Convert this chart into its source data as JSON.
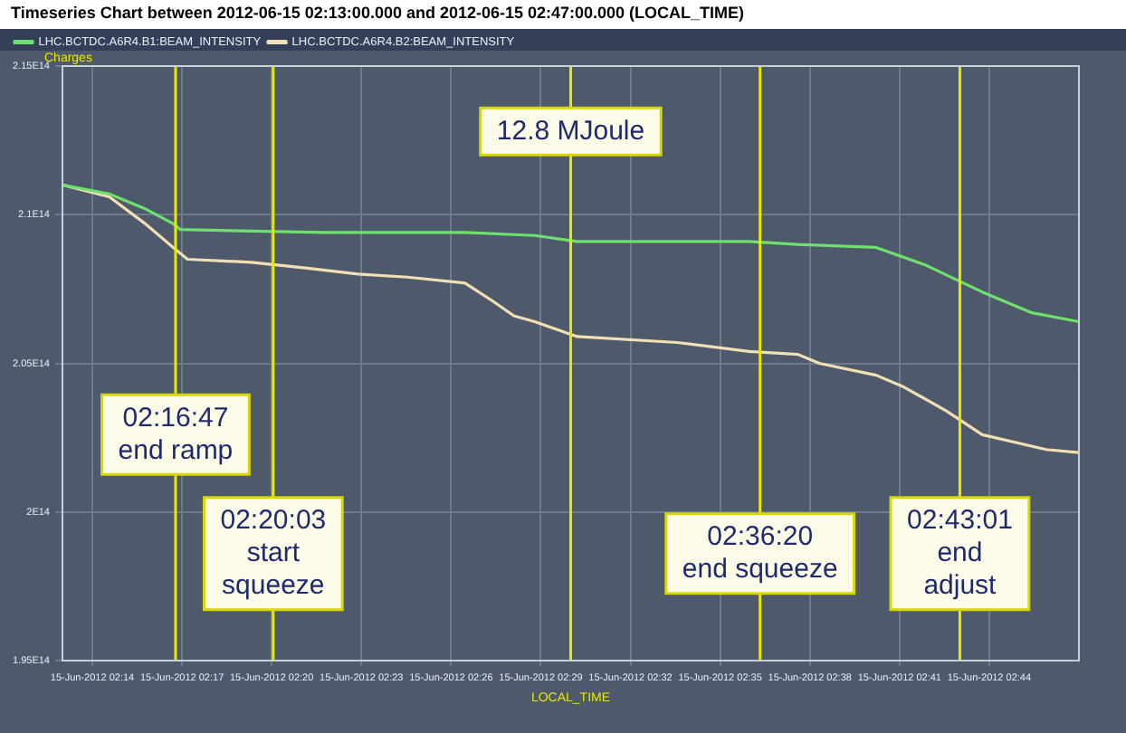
{
  "chart_data": {
    "type": "line",
    "title": "Timeseries Chart between 2012-06-15 02:13:00.000 and 2012-06-15 02:47:00.000 (LOCAL_TIME)",
    "xlabel": "LOCAL_TIME",
    "ylabel": "Charges",
    "series": [
      {
        "name": "LHC.BCTDC.A6R4.B1:BEAM_INTENSITY",
        "color": "#6ee06e",
        "x": [
          "2012-06-15T02:13:00",
          "2012-06-15T02:14:34",
          "2012-06-15T02:15:46",
          "2012-06-15T02:16:42",
          "2012-06-15T02:16:57",
          "2012-06-15T02:21:42",
          "2012-06-15T02:26:28",
          "2012-06-15T02:28:48",
          "2012-06-15T02:30:13",
          "2012-06-15T02:33:34",
          "2012-06-15T02:35:58",
          "2012-06-15T02:37:36",
          "2012-06-15T02:40:13",
          "2012-06-15T02:41:53",
          "2012-06-15T02:43:46",
          "2012-06-15T02:45:26",
          "2012-06-15T02:47:00"
        ],
        "values": [
          211000000000000.0,
          210700000000000.0,
          210200000000000.0,
          209700000000000.0,
          209500000000000.0,
          209400000000000.0,
          209400000000000.0,
          209300000000000.0,
          209100000000000.0,
          209100000000000.0,
          209100000000000.0,
          209000000000000.0,
          208900000000000.0,
          208300000000000.0,
          207400000000000.0,
          206700000000000.0,
          206400000000000.0
        ]
      },
      {
        "name": "LHC.BCTDC.A6R4.B2:BEAM_INTENSITY",
        "color": "#f2dfb4",
        "x": [
          "2012-06-15T02:13:00",
          "2012-06-15T02:14:34",
          "2012-06-15T02:15:46",
          "2012-06-15T02:16:42",
          "2012-06-15T02:17:11",
          "2012-06-15T02:19:19",
          "2012-06-15T02:21:12",
          "2012-06-15T02:22:53",
          "2012-06-15T02:24:32",
          "2012-06-15T02:26:28",
          "2012-06-15T02:27:23",
          "2012-06-15T02:28:06",
          "2012-06-15T02:28:48",
          "2012-06-15T02:30:13",
          "2012-06-15T02:33:34",
          "2012-06-15T02:35:58",
          "2012-06-15T02:37:36",
          "2012-06-15T02:38:19",
          "2012-06-15T02:40:13",
          "2012-06-15T02:41:09",
          "2012-06-15T02:42:34",
          "2012-06-15T02:43:46",
          "2012-06-15T02:45:54",
          "2012-06-15T02:47:00"
        ],
        "values": [
          211000000000000.0,
          210600000000000.0,
          209700000000000.0,
          208900000000000.0,
          208500000000000.0,
          208400000000000.0,
          208200000000000.0,
          208000000000000.0,
          207900000000000.0,
          207700000000000.0,
          207100000000000.0,
          206600000000000.0,
          206400000000000.0,
          205900000000000.0,
          205700000000000.0,
          205400000000000.0,
          205300000000000.0,
          205000000000000.0,
          204600000000000.0,
          204200000000000.0,
          203400000000000.0,
          202600000000000.0,
          202100000000000.0,
          202000000000000.0
        ]
      }
    ],
    "xlim": [
      "2012-06-15T02:13:00",
      "2012-06-15T02:47:00"
    ],
    "xticks": [
      {
        "value": "2012-06-15T02:14:00",
        "label": "15-Jun-2012 02:14"
      },
      {
        "value": "2012-06-15T02:17:00",
        "label": "15-Jun-2012 02:17"
      },
      {
        "value": "2012-06-15T02:20:00",
        "label": "15-Jun-2012 02:20"
      },
      {
        "value": "2012-06-15T02:23:00",
        "label": "15-Jun-2012 02:23"
      },
      {
        "value": "2012-06-15T02:26:00",
        "label": "15-Jun-2012 02:26"
      },
      {
        "value": "2012-06-15T02:29:00",
        "label": "15-Jun-2012 02:29"
      },
      {
        "value": "2012-06-15T02:32:00",
        "label": "15-Jun-2012 02:32"
      },
      {
        "value": "2012-06-15T02:35:00",
        "label": "15-Jun-2012 02:35"
      },
      {
        "value": "2012-06-15T02:38:00",
        "label": "15-Jun-2012 02:38"
      },
      {
        "value": "2012-06-15T02:41:00",
        "label": "15-Jun-2012 02:41"
      },
      {
        "value": "2012-06-15T02:44:00",
        "label": "15-Jun-2012 02:44"
      }
    ],
    "ylim": [
      195000000000000.0,
      215000000000000.0
    ],
    "yticks": [
      {
        "value": 195000000000000.0,
        "label": "1.95E14"
      },
      {
        "value": 200000000000000.0,
        "label": "2E14"
      },
      {
        "value": 205000000000000.0,
        "label": "2.05E14"
      },
      {
        "value": 210000000000000.0,
        "label": "2.1E14"
      },
      {
        "value": 215000000000000.0,
        "label": "2.15E14"
      }
    ],
    "ref_lines": [
      {
        "axis": "x",
        "value": "2012-06-15T02:16:47",
        "label": "02:16:47\nend ramp",
        "color": "#e8e800"
      },
      {
        "axis": "x",
        "value": "2012-06-15T02:20:03",
        "label": "02:20:03\nstart\nsqueeze",
        "color": "#e8e800"
      },
      {
        "axis": "x",
        "value": "2012-06-15T02:30:00",
        "label": "12.8 MJoule",
        "color": "#e8e800"
      },
      {
        "axis": "x",
        "value": "2012-06-15T02:36:20",
        "label": "02:36:20\nend squeeze",
        "color": "#e8e800"
      },
      {
        "axis": "x",
        "value": "2012-06-15T02:43:01",
        "label": "02:43:01\nend\nadjust",
        "color": "#e8e800"
      }
    ],
    "grid": true,
    "legend": "top",
    "marker": "none",
    "line_style": "solid"
  }
}
